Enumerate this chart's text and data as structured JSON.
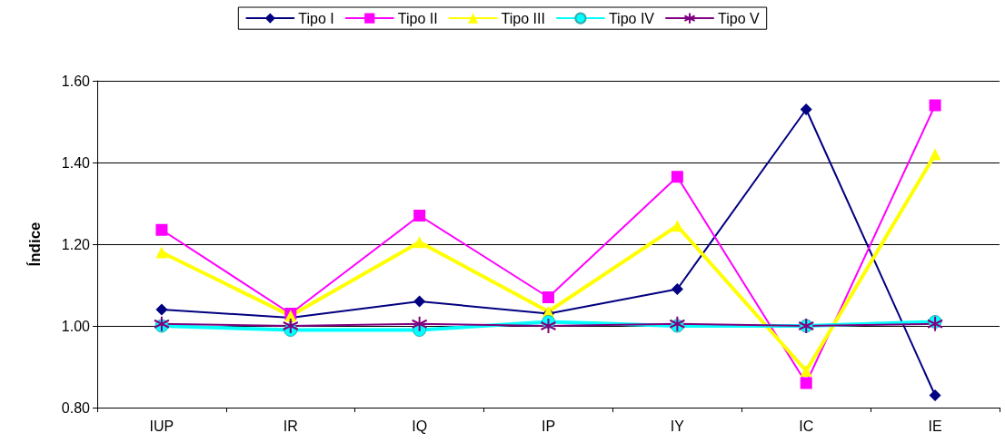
{
  "chart_data": {
    "type": "line",
    "ylabel": "Índice",
    "categories": [
      "IUP",
      "IR",
      "IQ",
      "IP",
      "IY",
      "IC",
      "IE"
    ],
    "series": [
      {
        "name": "Tipo I",
        "color": "#000080",
        "marker": "diamond",
        "values": [
          1.04,
          1.02,
          1.06,
          1.03,
          1.09,
          1.53,
          0.83
        ]
      },
      {
        "name": "Tipo II",
        "color": "#ff00ff",
        "marker": "square",
        "values": [
          1.235,
          1.03,
          1.27,
          1.07,
          1.365,
          0.86,
          1.54
        ]
      },
      {
        "name": "Tipo III",
        "color": "#ffff00",
        "marker": "triangle",
        "values": [
          1.18,
          1.025,
          1.205,
          1.035,
          1.245,
          0.89,
          1.42
        ]
      },
      {
        "name": "Tipo IV",
        "color": "#00ffff",
        "marker": "circle",
        "values": [
          1.0,
          0.99,
          0.99,
          1.01,
          1.0,
          1.0,
          1.01
        ]
      },
      {
        "name": "Tipo V",
        "color": "#800080",
        "marker": "cross",
        "values": [
          1.005,
          1.0,
          1.005,
          1.0,
          1.005,
          1.0,
          1.005
        ]
      }
    ],
    "ylim": [
      0.8,
      1.6
    ],
    "yticks": [
      {
        "value": 0.8,
        "label": "0.80"
      },
      {
        "value": 1.0,
        "label": "1.00"
      },
      {
        "value": 1.2,
        "label": "1.20"
      },
      {
        "value": 1.4,
        "label": "1.40"
      },
      {
        "value": 1.6,
        "label": "1.60"
      }
    ],
    "grid": "y",
    "legend": "top"
  }
}
